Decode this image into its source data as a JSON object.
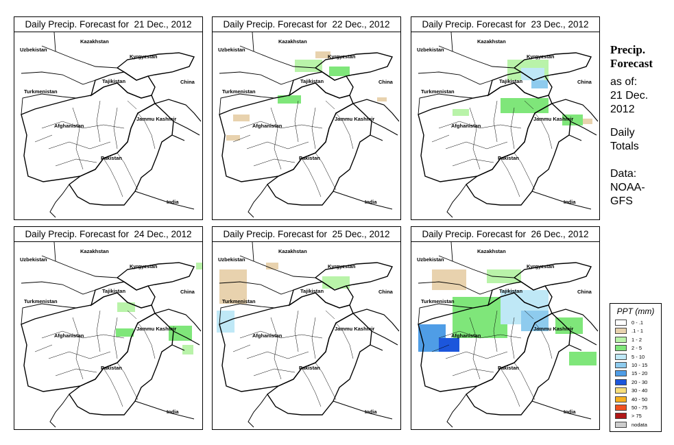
{
  "panels": [
    {
      "title": "Daily Precip. Forecast for  21 Dec., 2012"
    },
    {
      "title": "Daily Precip. Forecast for  22 Dec., 2012"
    },
    {
      "title": "Daily Precip. Forecast for  23 Dec., 2012"
    },
    {
      "title": "Daily Precip. Forecast for  24 Dec., 2012"
    },
    {
      "title": "Daily Precip. Forecast for  25 Dec., 2012"
    },
    {
      "title": "Daily Precip. Forecast for  26 Dec., 2012"
    }
  ],
  "map_labels": {
    "kazakhstan": "Kazakhstan",
    "uzbekistan": "Uzbekistan",
    "kyrgyzstan": "Kyrgyzstan",
    "tajikistan": "Tajikistan",
    "turkmenistan": "Turkmenistan",
    "china": "China",
    "afghanistan": "Afghanistan",
    "jammu_kashmir": "Jammu Kashmir",
    "pakistan": "Pakistan",
    "india": "India"
  },
  "sidebar": {
    "title_line1": "Precip.",
    "title_line2": "Forecast",
    "asof_line1": "as of:",
    "asof_line2": "21 Dec.",
    "asof_line3": "2012",
    "daily_line1": "Daily",
    "daily_line2": "Totals",
    "data_line1": "Data:",
    "data_line2": "NOAA-",
    "data_line3": "GFS"
  },
  "legend": {
    "title": "PPT (mm)",
    "items": [
      {
        "label": "0 - .1",
        "color": "#ffffff"
      },
      {
        "label": ".1 - 1",
        "color": "#e8d2ae"
      },
      {
        "label": "1 - 2",
        "color": "#b9f3a9"
      },
      {
        "label": "2 - 5",
        "color": "#7fe67a"
      },
      {
        "label": "5 - 10",
        "color": "#bfe8f6"
      },
      {
        "label": "10 - 15",
        "color": "#8ecbee"
      },
      {
        "label": "15 - 20",
        "color": "#4f9de6"
      },
      {
        "label": "20 - 30",
        "color": "#1c56dc"
      },
      {
        "label": "30 - 40",
        "color": "#f7de7a"
      },
      {
        "label": "40 - 50",
        "color": "#f6b020"
      },
      {
        "label": "50 - 75",
        "color": "#f05020"
      },
      {
        "label": "> 75",
        "color": "#b01818"
      },
      {
        "label": "nodata",
        "color": "#cccccc"
      }
    ]
  }
}
